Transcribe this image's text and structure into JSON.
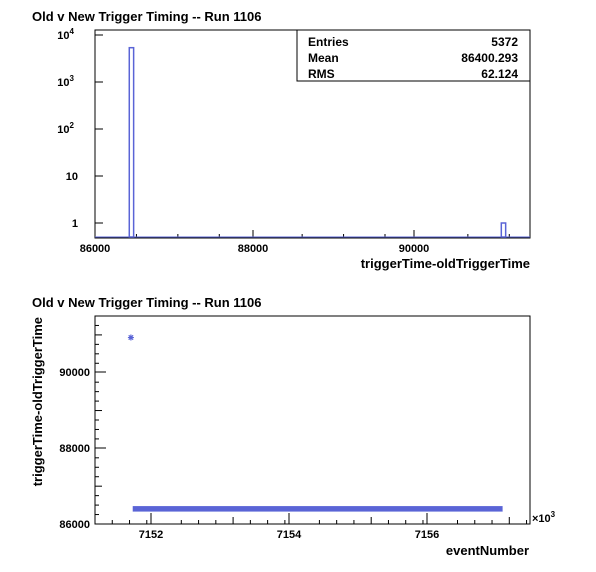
{
  "colors": {
    "series": "#5a64d6",
    "frame": "#000000",
    "background": "#ffffff"
  },
  "chart_data": [
    {
      "type": "bar",
      "title": "Old v New Trigger Timing -- Run 1106",
      "xlabel": "triggerTime-oldTriggerTime",
      "ylabel": "",
      "y_scale": "log",
      "xlim": [
        86000,
        91250
      ],
      "ylim": [
        0.5,
        10000
      ],
      "x_ticks": [
        "86000",
        "88000",
        "90000"
      ],
      "y_ticks": [
        "1",
        "10",
        "10^2",
        "10^3",
        "10^4"
      ],
      "bins": [
        {
          "x": 86440,
          "count": 5371
        },
        {
          "x": 90930,
          "count": 1
        }
      ],
      "stats": {
        "entries_label": "Entries",
        "entries": "5372",
        "mean_label": "Mean",
        "mean": "86400.293",
        "rms_label": "RMS",
        "rms": "62.124"
      },
      "grid": false,
      "legend": "top-right"
    },
    {
      "type": "scatter",
      "title": "Old v New Trigger Timing -- Run 1106",
      "xlabel": "eventNumber",
      "ylabel": "triggerTime-oldTriggerTime",
      "x_multiplier": "×10^3",
      "xlim": [
        7151.0,
        7157.3
      ],
      "ylim": [
        86000,
        91500
      ],
      "x_ticks": [
        "7152",
        "7154",
        "7156"
      ],
      "y_ticks": [
        "86000",
        "88000",
        "90000"
      ],
      "outlier": {
        "x": 7151.52,
        "y": 90930
      },
      "band": {
        "x_start": 7151.55,
        "x_end": 7156.9,
        "y": 86400
      },
      "grid": false
    }
  ]
}
